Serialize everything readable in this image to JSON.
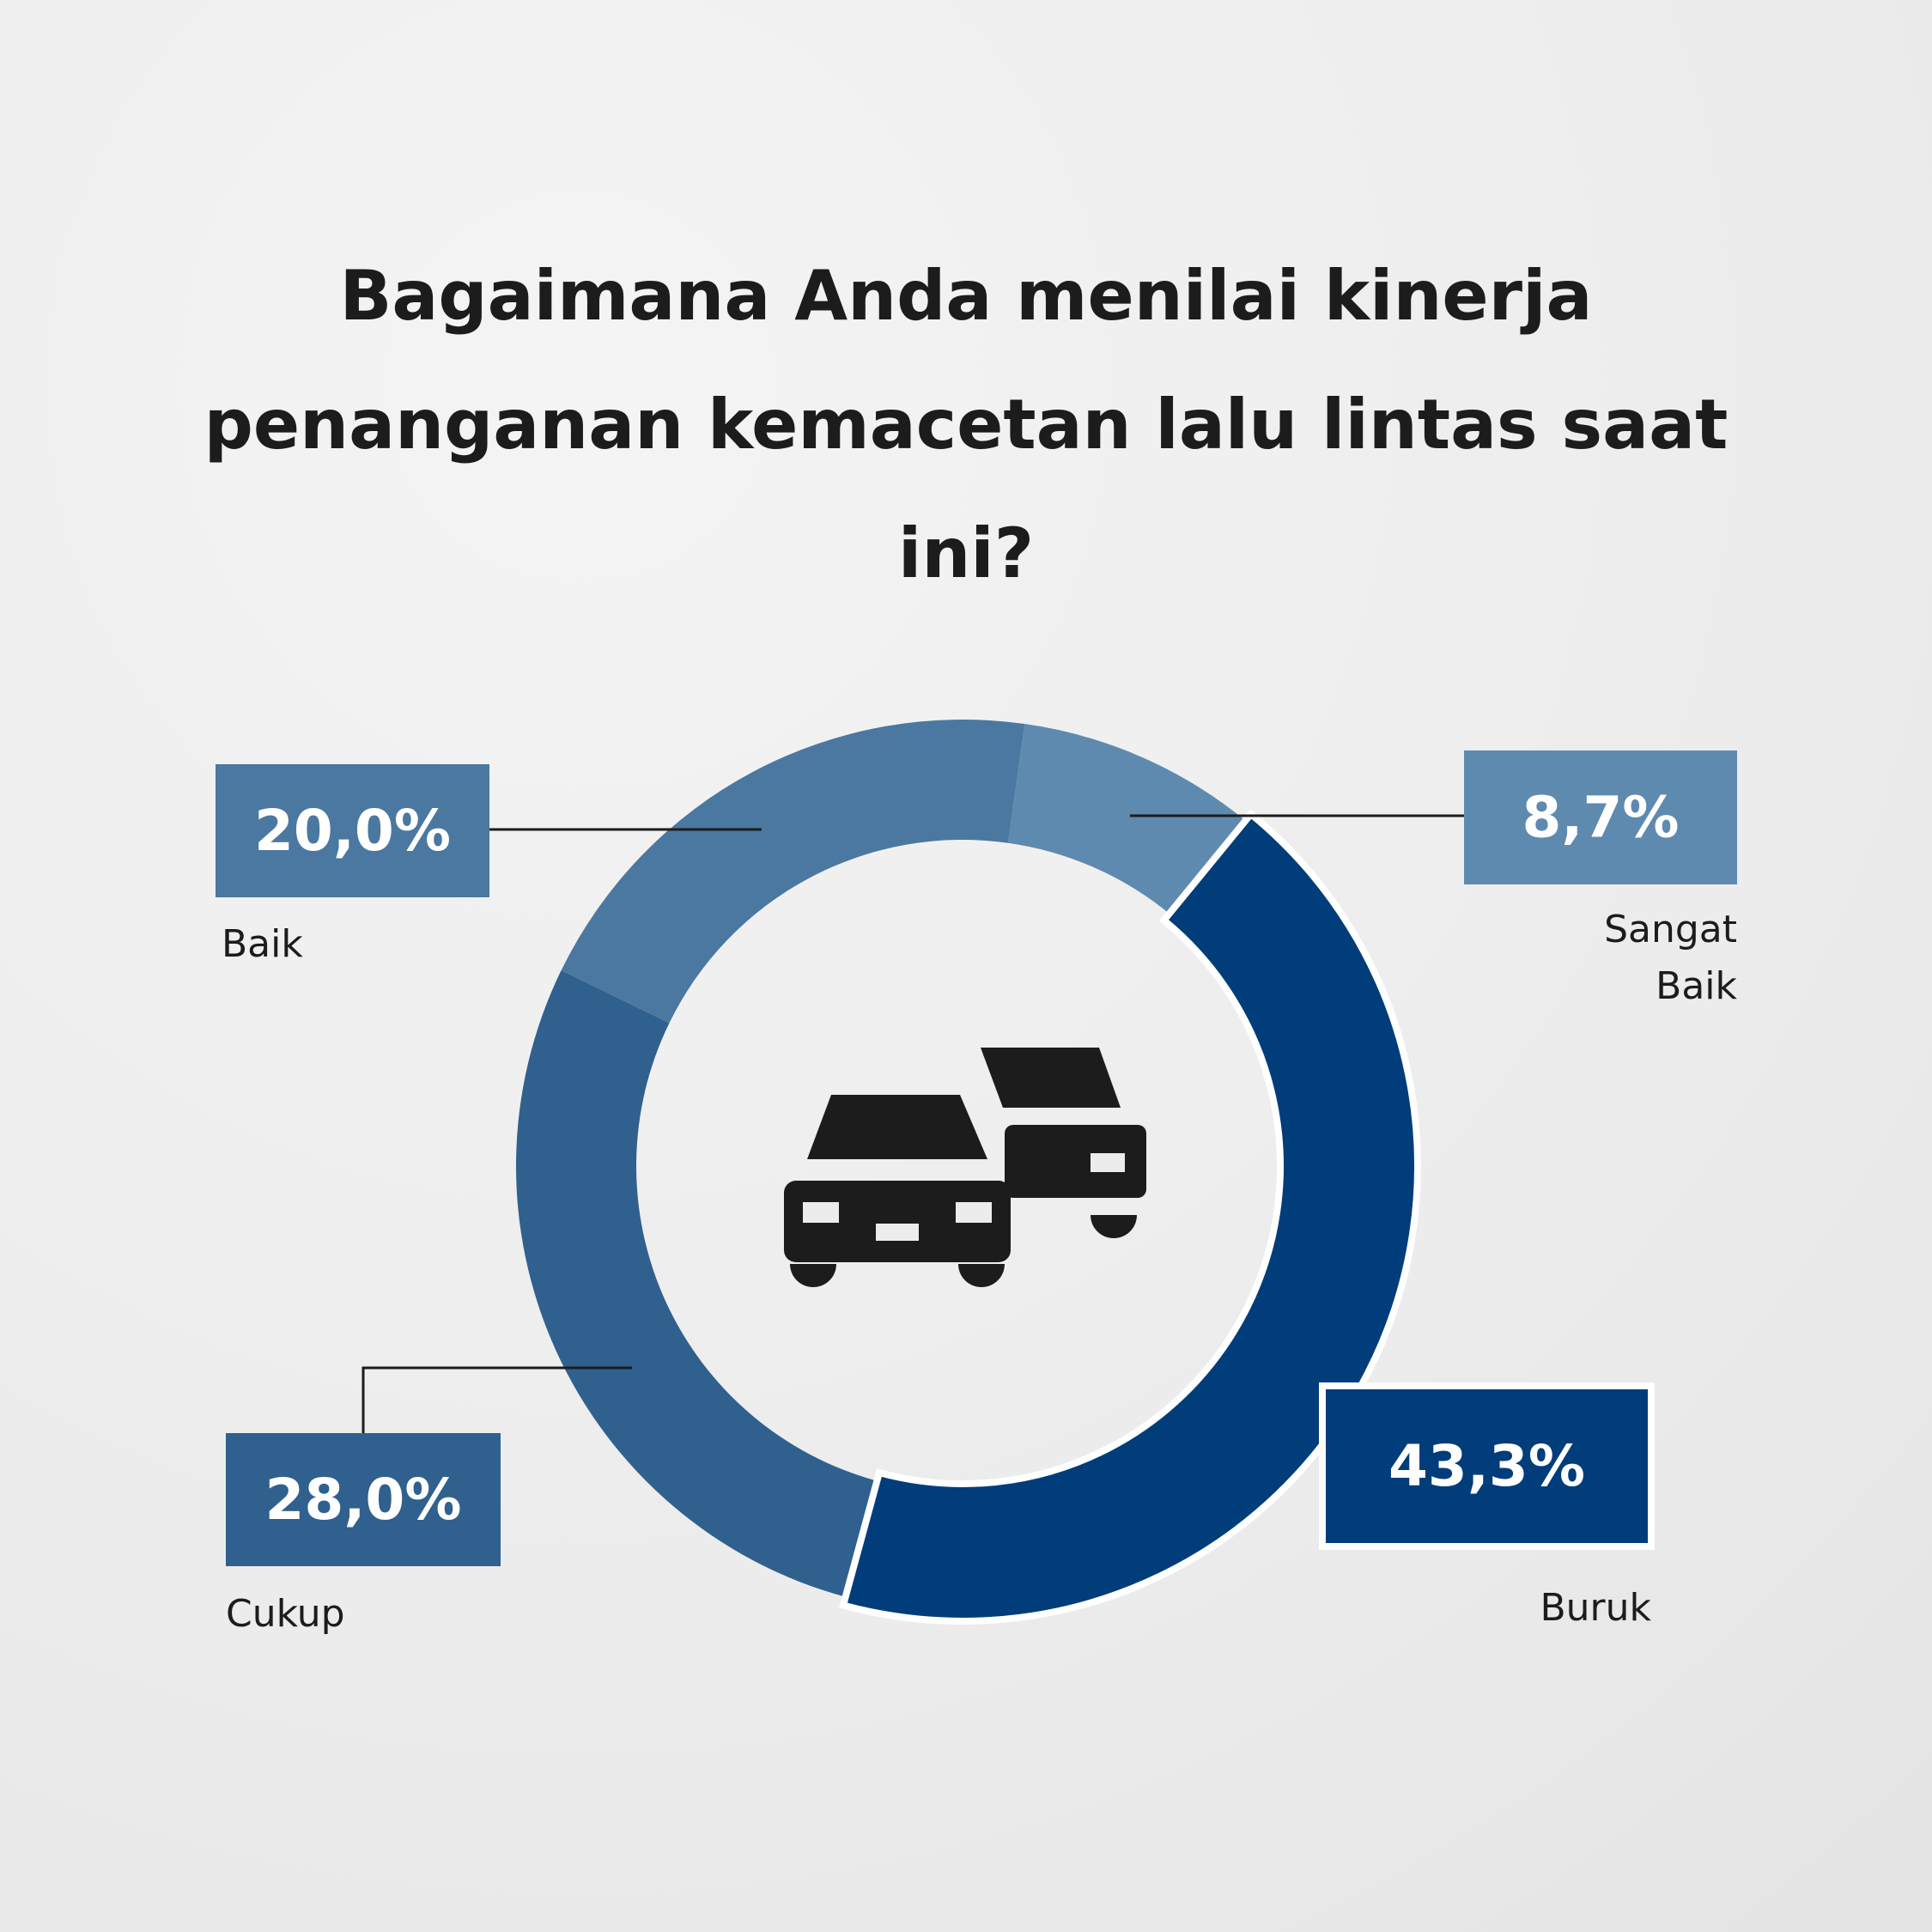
{
  "chart_data": {
    "type": "donut",
    "title": "Bagaimana Anda menilai kinerja penanganan kemacetan lalu lintas saat ini?",
    "categories": [
      "Sangat Baik",
      "Buruk",
      "Cukup",
      "Baik"
    ],
    "values": [
      8.7,
      43.3,
      28.0,
      20.0
    ],
    "value_labels": [
      "8,7%",
      "43,3%",
      "28,0%",
      "20,0%"
    ],
    "colors": [
      "#5f8ab0",
      "#003d7a",
      "#30608e",
      "#4a78a0"
    ]
  }
}
